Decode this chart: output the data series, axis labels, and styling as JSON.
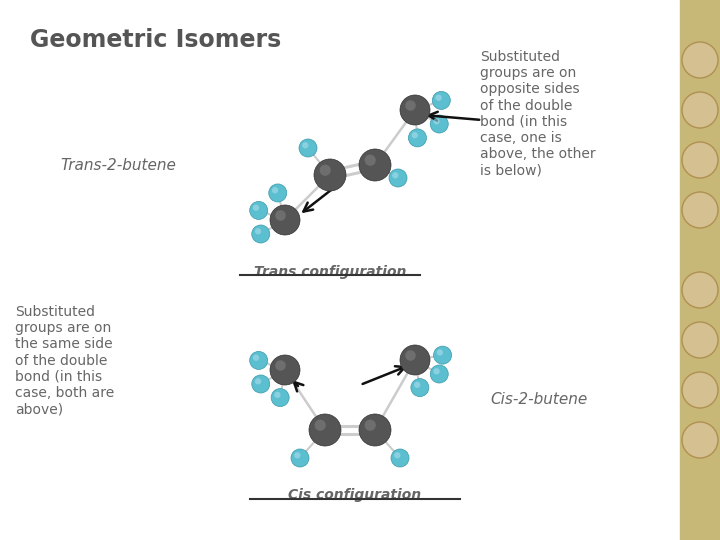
{
  "title": "Geometric Isomers",
  "title_fontsize": 17,
  "title_fontweight": "bold",
  "title_color": "#555555",
  "bg_color": "#ffffff",
  "trans_label": "Trans-2-butene",
  "trans_config_label": "Trans configuration",
  "trans_desc": "Substituted\ngroups are on\nopposite sides\nof the double\nbond (in this\ncase, one is\nabove, the other\nis below)",
  "cis_label": "Cis-2-butene",
  "cis_config_label": "Cis configuration",
  "cis_desc": "Substituted\ngroups are on\nthe same side\nof the double\nbond (in this\ncase, both are\nabove)",
  "carbon_color": "#555555",
  "carbon_edge": "#333333",
  "hydrogen_color": "#5bbfcf",
  "hydrogen_edge": "#3a9aaa",
  "bond_color": "#cccccc",
  "text_color": "#666666",
  "arrow_color": "#111111",
  "label_fontsize": 11,
  "desc_fontsize": 10,
  "config_fontsize": 10,
  "right_strip_color": "#d4c090"
}
